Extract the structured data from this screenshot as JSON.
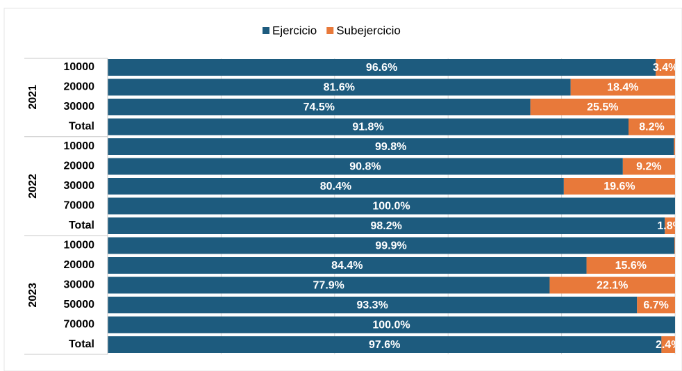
{
  "chart_data": {
    "type": "stacked-barh-100",
    "groups": [
      {
        "name": "2021",
        "categories": [
          "10000",
          "20000",
          "30000",
          "Total"
        ]
      },
      {
        "name": "2022",
        "categories": [
          "10000",
          "20000",
          "30000",
          "70000",
          "Total"
        ]
      },
      {
        "name": "2023",
        "categories": [
          "10000",
          "20000",
          "30000",
          "50000",
          "70000",
          "Total"
        ]
      }
    ],
    "series": [
      {
        "name": "Ejercicio",
        "color": "#1d5b7e",
        "values": [
          96.6,
          81.6,
          74.5,
          91.8,
          99.8,
          90.8,
          80.4,
          100.0,
          98.2,
          99.9,
          84.4,
          77.9,
          93.3,
          100.0,
          97.6
        ],
        "value_labels": [
          "96.6%",
          "81.6%",
          "74.5%",
          "91.8%",
          "99.8%",
          "90.8%",
          "80.4%",
          "100.0%",
          "98.2%",
          "99.9%",
          "84.4%",
          "77.9%",
          "93.3%",
          "100.0%",
          "97.6%"
        ]
      },
      {
        "name": "Subejercicio",
        "color": "#e8793a",
        "values": [
          3.4,
          18.4,
          25.5,
          8.2,
          0.2,
          9.2,
          19.6,
          0.0,
          1.8,
          0.1,
          15.6,
          22.1,
          6.7,
          0.0,
          2.4
        ],
        "value_labels": [
          "3.4%",
          "18.4%",
          "25.5%",
          "8.2%",
          null,
          "9.2%",
          "19.6%",
          null,
          "1.8%",
          null,
          "15.6%",
          "22.1%",
          "6.7%",
          null,
          "2.4%"
        ]
      }
    ],
    "xlim": [
      0,
      100
    ],
    "xticks": [
      0,
      20,
      40,
      60,
      80,
      100
    ],
    "grid": true,
    "legend": "top"
  }
}
